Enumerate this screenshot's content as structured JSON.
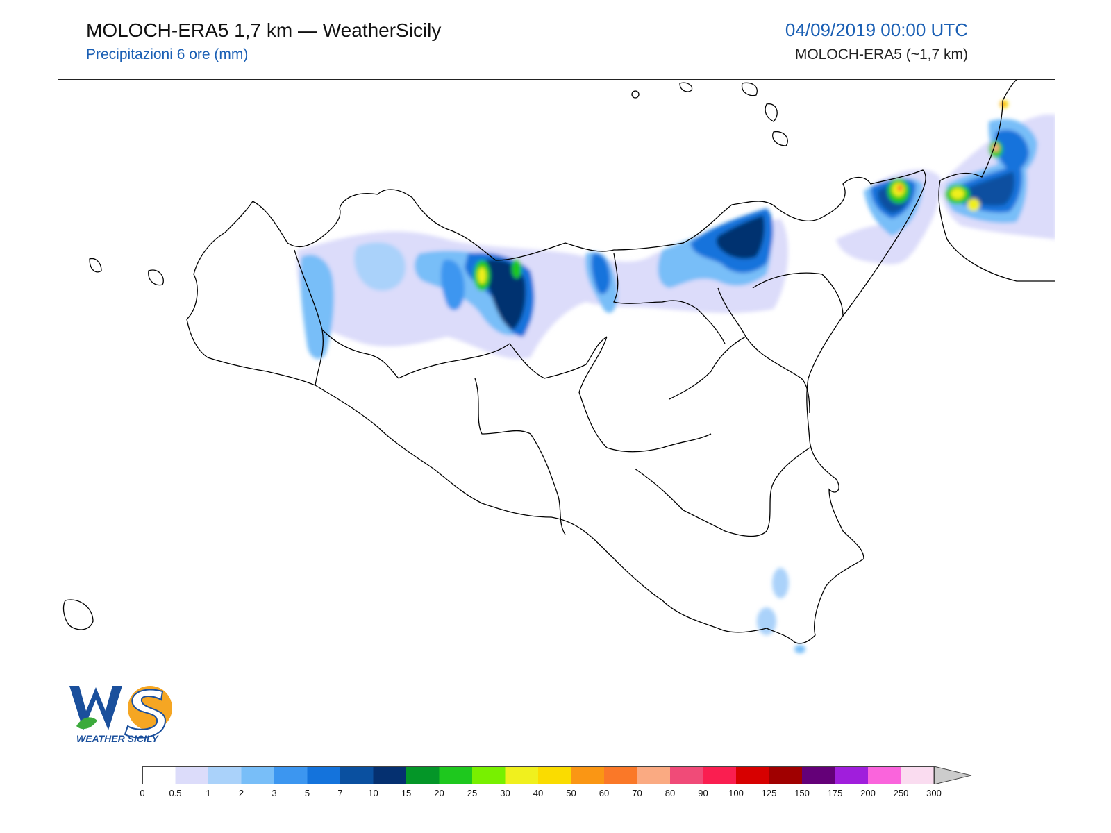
{
  "header": {
    "title": "MOLOCH-ERA5 1,7 km — WeatherSicily",
    "subtitle": "Precipitazioni 6 ore (mm)",
    "datetime": "04/09/2019 00:00 UTC",
    "model": "MOLOCH-ERA5 (~1,7 km)"
  },
  "logo": {
    "initials": "WS",
    "name": "WEATHER SICILY"
  },
  "colors": {
    "border": "#222222",
    "coast": "#000000",
    "accent": "#1a5fb4"
  },
  "legend": {
    "labels": [
      "0",
      "0.5",
      "1",
      "2",
      "3",
      "5",
      "7",
      "10",
      "15",
      "20",
      "25",
      "30",
      "40",
      "50",
      "60",
      "70",
      "80",
      "90",
      "100",
      "125",
      "150",
      "175",
      "200",
      "250",
      "300"
    ],
    "colors": [
      "#ffffff",
      "#dcdcfa",
      "#aad2fa",
      "#78bef8",
      "#3c96f0",
      "#1473dc",
      "#0a50a0",
      "#053070",
      "#049628",
      "#1ec81e",
      "#78f000",
      "#f0f01e",
      "#fadc00",
      "#fa9614",
      "#fa7828",
      "#faaa82",
      "#f04b78",
      "#fa1e50",
      "#d70000",
      "#a00000",
      "#640078",
      "#a01edc",
      "#fa64dc",
      "#fadcf0"
    ],
    "extend_color": "#cccccc"
  }
}
